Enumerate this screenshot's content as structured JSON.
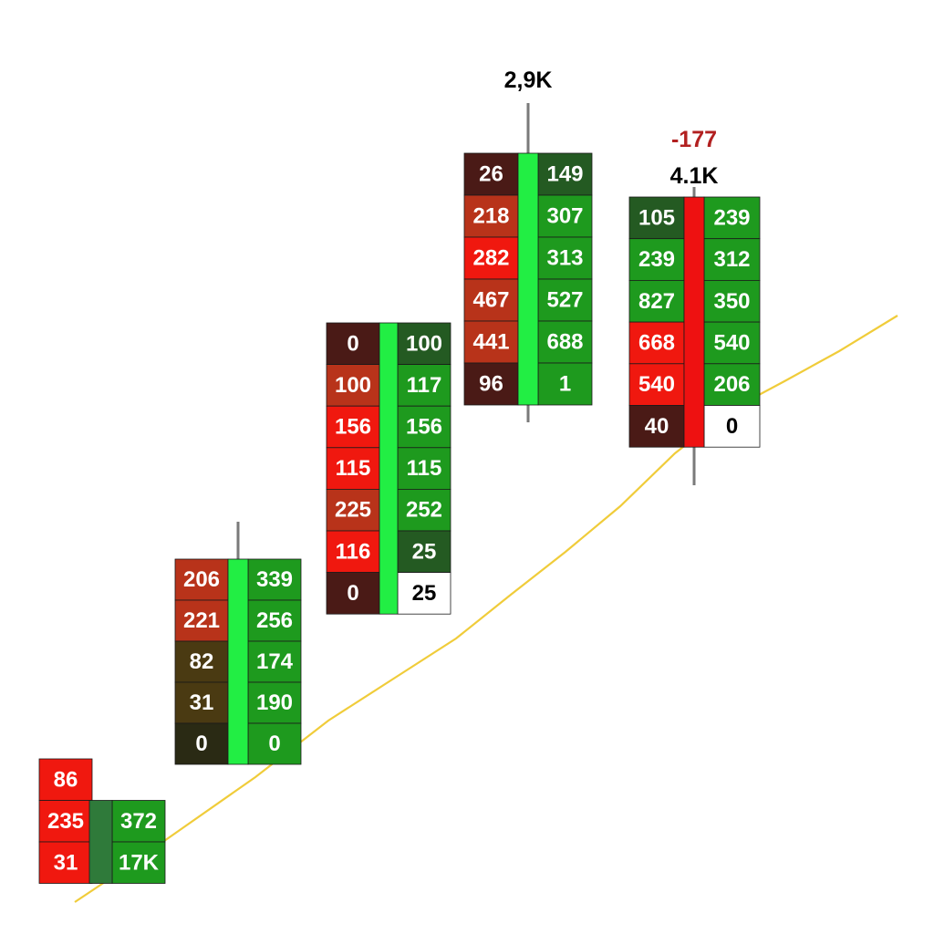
{
  "chart_data": {
    "type": "footprint",
    "colors": {
      "strong_red": "#f0180f",
      "dark_red": "#4a1a16",
      "rust": "#b8331a",
      "olive": "#4a3a12",
      "strong_green": "#1e9a1e",
      "dark_green": "#245a22",
      "bright_green_body": "#22ee44",
      "red_body": "#ee1111",
      "empty": "#ffffff",
      "wick": "#7a7a7a",
      "trend_line": "#f0cc3a",
      "label_dark": "#000000",
      "label_red": "#b22020"
    },
    "candles": [
      {
        "name": "candle-1",
        "direction": "up",
        "labels": [],
        "rows": [
          {
            "bid": "86",
            "ask": null
          },
          {
            "bid": "235",
            "ask": "372"
          },
          {
            "bid": "31",
            "ask": "17K"
          }
        ]
      },
      {
        "name": "candle-2",
        "direction": "up",
        "labels": [],
        "rows": [
          {
            "bid": "206",
            "ask": "339"
          },
          {
            "bid": "221",
            "ask": "256"
          },
          {
            "bid": "82",
            "ask": "174"
          },
          {
            "bid": "31",
            "ask": "190"
          },
          {
            "bid": "0",
            "ask": "0"
          }
        ]
      },
      {
        "name": "candle-3",
        "direction": "up",
        "labels": [],
        "rows": [
          {
            "bid": "0",
            "ask": "100"
          },
          {
            "bid": "100",
            "ask": "117"
          },
          {
            "bid": "156",
            "ask": "156"
          },
          {
            "bid": "115",
            "ask": "115"
          },
          {
            "bid": "225",
            "ask": "252"
          },
          {
            "bid": "116",
            "ask": "25"
          },
          {
            "bid": "0",
            "ask": "25"
          }
        ]
      },
      {
        "name": "candle-4",
        "direction": "up",
        "labels": [
          {
            "text": "2,9K",
            "color": "dark"
          }
        ],
        "rows": [
          {
            "bid": "26",
            "ask": "149"
          },
          {
            "bid": "218",
            "ask": "307"
          },
          {
            "bid": "282",
            "ask": "313"
          },
          {
            "bid": "467",
            "ask": "527"
          },
          {
            "bid": "441",
            "ask": "688"
          },
          {
            "bid": "96",
            "ask": "1"
          }
        ]
      },
      {
        "name": "candle-5",
        "direction": "down",
        "labels": [
          {
            "text": "-177",
            "color": "red"
          },
          {
            "text": "4.1K",
            "color": "dark"
          }
        ],
        "rows": [
          {
            "bid": "105",
            "ask": "239"
          },
          {
            "bid": "239",
            "ask": "312"
          },
          {
            "bid": "827",
            "ask": "350"
          },
          {
            "bid": "668",
            "ask": "540"
          },
          {
            "bid": "540",
            "ask": "206"
          },
          {
            "bid": "40",
            "ask": "0"
          }
        ]
      }
    ],
    "trend_line": {
      "label": ""
    }
  }
}
